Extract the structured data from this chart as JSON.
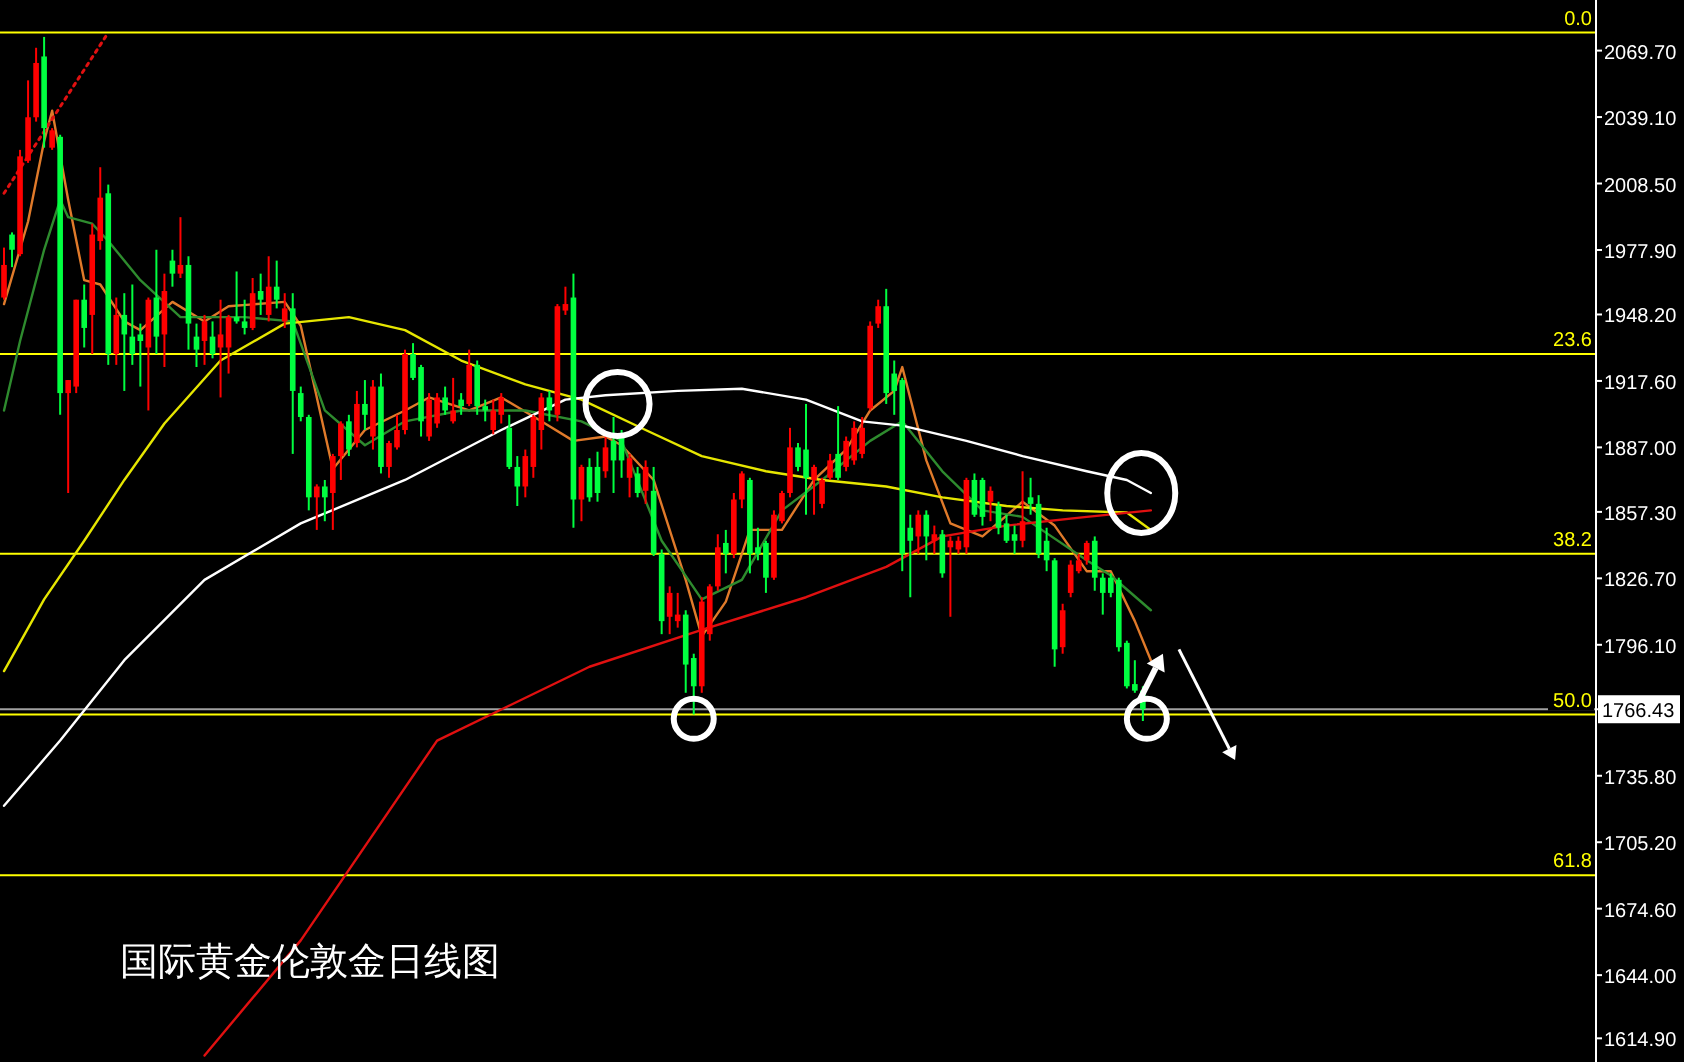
{
  "chart_data": {
    "type": "candlestick",
    "title": "国际黄金伦敦金日线图",
    "categories": [
      null,
      null,
      null,
      null,
      null,
      null,
      null,
      null,
      null,
      null,
      null,
      null,
      null,
      null,
      null,
      null,
      null,
      null,
      null,
      null,
      null,
      null,
      null,
      null,
      null,
      null,
      null,
      null,
      null,
      null,
      null,
      null,
      null,
      null,
      null,
      null,
      null,
      null,
      null,
      null,
      null,
      null,
      null,
      null,
      null,
      null,
      null,
      null,
      null,
      null,
      null,
      null,
      null,
      null,
      null,
      null,
      null,
      null,
      null,
      null,
      null,
      null,
      null,
      null,
      null,
      null,
      null,
      null,
      null,
      null,
      null,
      null,
      null,
      null,
      null,
      null,
      null,
      null,
      null,
      null,
      null,
      null,
      null,
      null,
      null,
      null,
      null,
      null,
      null,
      null,
      null,
      null,
      null,
      null,
      null,
      null,
      null,
      null,
      null,
      null,
      null,
      null,
      null,
      null,
      null,
      null,
      null,
      null,
      null,
      null,
      null,
      null,
      null,
      null,
      null,
      null,
      null,
      null,
      null,
      null,
      null,
      null,
      null,
      null,
      null,
      null,
      null,
      null,
      null,
      null,
      null,
      null,
      null,
      null,
      null,
      null,
      null,
      null,
      null,
      null,
      null,
      null,
      null,
      null,
      null,
      null,
      null,
      null,
      null,
      null,
      null,
      null,
      null,
      null,
      null,
      null,
      null,
      null,
      null,
      null,
      null,
      null,
      null,
      null,
      null,
      null,
      null,
      null,
      null,
      null,
      null,
      null,
      null,
      null,
      null,
      null,
      null,
      null,
      null,
      null,
      null,
      null,
      null,
      null,
      null,
      null,
      null,
      null,
      null,
      null,
      null,
      null,
      null,
      null,
      null,
      null,
      null,
      null,
      null
    ],
    "ohlc": [
      [
        1956,
        1979,
        1955,
        1971
      ],
      [
        1985,
        1986,
        1970,
        1978
      ],
      [
        1976,
        2024,
        1975,
        2021
      ],
      [
        2019,
        2056,
        2018,
        2039
      ],
      [
        2039,
        2071,
        2037,
        2064
      ],
      [
        2067,
        2076,
        2025,
        2034
      ],
      [
        2025,
        2034,
        2024,
        2033
      ],
      [
        2030,
        2031,
        1902,
        1912
      ],
      [
        1912,
        1918,
        1866,
        1918
      ],
      [
        1915,
        1955,
        1912,
        1955
      ],
      [
        1955,
        1962,
        1933,
        1942
      ],
      [
        1948,
        1990,
        1930,
        1985
      ],
      [
        1982,
        2016,
        1978,
        2002
      ],
      [
        2004,
        2008,
        1925,
        1930
      ],
      [
        1930,
        1956,
        1925,
        1948
      ],
      [
        1948,
        1958,
        1913,
        1939
      ],
      [
        1938,
        1962,
        1925,
        1930
      ],
      [
        1939,
        1944,
        1915,
        1936
      ],
      [
        1933,
        1956,
        1904,
        1955
      ],
      [
        1956,
        1978,
        1930,
        1938
      ],
      [
        1939,
        1967,
        1924,
        1959
      ],
      [
        1973,
        1978,
        1961,
        1967
      ],
      [
        1967,
        1993,
        1965,
        1971
      ],
      [
        1971,
        1975,
        1932,
        1944
      ],
      [
        1938,
        1944,
        1924,
        1932
      ],
      [
        1936,
        1948,
        1925,
        1945
      ],
      [
        1938,
        1945,
        1928,
        1930
      ],
      [
        1933,
        1955,
        1910,
        1939
      ],
      [
        1933,
        1948,
        1921,
        1947
      ],
      [
        1947,
        1968,
        1944,
        1945
      ],
      [
        1945,
        1955,
        1939,
        1942
      ],
      [
        1942,
        1965,
        1941,
        1958
      ],
      [
        1959,
        1967,
        1948,
        1955
      ],
      [
        1948,
        1975,
        1945,
        1961
      ],
      [
        1961,
        1973,
        1951,
        1955
      ],
      [
        1945,
        1958,
        1942,
        1951
      ],
      [
        1951,
        1958,
        1884,
        1913
      ],
      [
        1912,
        1915,
        1899,
        1901
      ],
      [
        1901,
        1902,
        1858,
        1864
      ],
      [
        1864,
        1870,
        1849,
        1869
      ],
      [
        1869,
        1872,
        1853,
        1864
      ],
      [
        1866,
        1884,
        1849,
        1883
      ],
      [
        1883,
        1899,
        1872,
        1898
      ],
      [
        1899,
        1902,
        1883,
        1886
      ],
      [
        1889,
        1913,
        1887,
        1907
      ],
      [
        1907,
        1918,
        1895,
        1902
      ],
      [
        1892,
        1918,
        1886,
        1915
      ],
      [
        1915,
        1921,
        1875,
        1878
      ],
      [
        1878,
        1890,
        1873,
        1889
      ],
      [
        1887,
        1902,
        1886,
        1895
      ],
      [
        1895,
        1932,
        1893,
        1930
      ],
      [
        1930,
        1935,
        1918,
        1919
      ],
      [
        1924,
        1925,
        1892,
        1899
      ],
      [
        1892,
        1912,
        1890,
        1909
      ],
      [
        1898,
        1912,
        1896,
        1910
      ],
      [
        1910,
        1915,
        1902,
        1904
      ],
      [
        1899,
        1919,
        1898,
        1904
      ],
      [
        1909,
        1912,
        1902,
        1906
      ],
      [
        1907,
        1932,
        1906,
        1925
      ],
      [
        1925,
        1927,
        1902,
        1906
      ],
      [
        1906,
        1909,
        1899,
        1904
      ],
      [
        1895,
        1909,
        1893,
        1904
      ],
      [
        1902,
        1912,
        1898,
        1910
      ],
      [
        1896,
        1902,
        1877,
        1878
      ],
      [
        1878,
        1883,
        1860,
        1869
      ],
      [
        1869,
        1886,
        1864,
        1883
      ],
      [
        1878,
        1902,
        1873,
        1901
      ],
      [
        1895,
        1912,
        1886,
        1910
      ],
      [
        1910,
        1913,
        1899,
        1904
      ],
      [
        1902,
        1953,
        1899,
        1952
      ],
      [
        1950,
        1961,
        1948,
        1953
      ],
      [
        1956,
        1967,
        1850,
        1863
      ],
      [
        1863,
        1879,
        1853,
        1878
      ],
      [
        1878,
        1882,
        1862,
        1864
      ],
      [
        1878,
        1885,
        1862,
        1866
      ],
      [
        1876,
        1892,
        1873,
        1887
      ],
      [
        1890,
        1901,
        1866,
        1881
      ],
      [
        1893,
        1895,
        1873,
        1881
      ],
      [
        1873,
        1884,
        1864,
        1882
      ],
      [
        1875,
        1878,
        1864,
        1866
      ],
      [
        1867,
        1881,
        1861,
        1878
      ],
      [
        1867,
        1878,
        1837,
        1838
      ],
      [
        1838,
        1840,
        1801,
        1807
      ],
      [
        1809,
        1823,
        1801,
        1820
      ],
      [
        1807,
        1820,
        1804,
        1810
      ],
      [
        1810,
        1812,
        1774,
        1787
      ],
      [
        1790,
        1792,
        1764,
        1777
      ],
      [
        1777,
        1818,
        1774,
        1816
      ],
      [
        1801,
        1824,
        1798,
        1823
      ],
      [
        1823,
        1847,
        1821,
        1841
      ],
      [
        1843,
        1849,
        1829,
        1838
      ],
      [
        1838,
        1866,
        1836,
        1863
      ],
      [
        1863,
        1876,
        1859,
        1875
      ],
      [
        1872,
        1873,
        1829,
        1838
      ],
      [
        1841,
        1850,
        1835,
        1838
      ],
      [
        1843,
        1844,
        1820,
        1827
      ],
      [
        1827,
        1858,
        1826,
        1856
      ],
      [
        1853,
        1867,
        1852,
        1866
      ],
      [
        1866,
        1896,
        1864,
        1887
      ],
      [
        1887,
        1889,
        1876,
        1878
      ],
      [
        1886,
        1907,
        1856,
        1873
      ],
      [
        1872,
        1879,
        1856,
        1878
      ],
      [
        1861,
        1873,
        1859,
        1872
      ],
      [
        1873,
        1884,
        1872,
        1881
      ],
      [
        1884,
        1906,
        1872,
        1873
      ],
      [
        1878,
        1892,
        1876,
        1890
      ],
      [
        1881,
        1899,
        1879,
        1896
      ],
      [
        1884,
        1901,
        1882,
        1896
      ],
      [
        1905,
        1945,
        1904,
        1943
      ],
      [
        1944,
        1955,
        1942,
        1952
      ],
      [
        1952,
        1960,
        1907,
        1912
      ],
      [
        1921,
        1927,
        1902,
        1913
      ],
      [
        1918,
        1919,
        1830,
        1838
      ],
      [
        1850,
        1856,
        1818,
        1844
      ],
      [
        1846,
        1858,
        1838,
        1856
      ],
      [
        1856,
        1858,
        1835,
        1846
      ],
      [
        1844,
        1851,
        1838,
        1847
      ],
      [
        1847,
        1849,
        1827,
        1829
      ],
      [
        1841,
        1846,
        1809,
        1844
      ],
      [
        1840,
        1846,
        1838,
        1844
      ],
      [
        1841,
        1873,
        1838,
        1872
      ],
      [
        1872,
        1875,
        1855,
        1856
      ],
      [
        1872,
        1873,
        1851,
        1855
      ],
      [
        1862,
        1869,
        1853,
        1867
      ],
      [
        1860,
        1862,
        1847,
        1850
      ],
      [
        1852,
        1856,
        1843,
        1844
      ],
      [
        1847,
        1851,
        1838,
        1844
      ],
      [
        1844,
        1876,
        1841,
        1853
      ],
      [
        1864,
        1873,
        1856,
        1861
      ],
      [
        1861,
        1865,
        1836,
        1838
      ],
      [
        1844,
        1850,
        1830,
        1835
      ],
      [
        1835,
        1836,
        1786,
        1794
      ],
      [
        1795,
        1815,
        1792,
        1812
      ],
      [
        1820,
        1835,
        1818,
        1833
      ],
      [
        1830,
        1838,
        1829,
        1835
      ],
      [
        1835,
        1844,
        1833,
        1843
      ],
      [
        1844,
        1846,
        1821,
        1827
      ],
      [
        1827,
        1829,
        1810,
        1820
      ],
      [
        1827,
        1829,
        1818,
        1820
      ],
      [
        1826,
        1827,
        1793,
        1795
      ],
      [
        1797,
        1798,
        1776,
        1777
      ],
      [
        1778,
        1789,
        1774,
        1775
      ],
      [
        1775,
        1777,
        1761,
        1766.43
      ],
      null,
      null,
      null,
      null,
      null,
      null,
      null,
      null,
      null,
      null,
      null,
      null,
      null,
      null,
      null,
      null,
      null,
      null,
      null,
      null,
      null,
      null,
      null,
      null,
      null,
      null,
      null,
      null,
      null,
      null,
      null,
      null,
      null,
      null,
      null,
      null,
      null,
      null,
      null,
      null,
      null,
      null,
      null,
      null,
      null,
      null,
      null,
      null,
      null,
      null,
      null,
      null,
      null,
      null,
      null,
      null
    ],
    "colors": [
      "#ff0000",
      "#00ff40",
      "#ff0000",
      "#ff0000",
      "#ff0000",
      "#00ff40",
      "#ff0000",
      "#00ff40",
      "#ff0000",
      "#ff0000",
      "#00ff40",
      "#ff0000",
      "#ff0000",
      "#00ff40",
      "#ff0000",
      "#00ff40",
      "#00ff40",
      "#00ff40",
      "#ff0000",
      "#00ff40",
      "#ff0000",
      "#00ff40",
      "#ff0000",
      "#00ff40",
      "#00ff40",
      "#ff0000",
      "#00ff40",
      "#ff0000",
      "#ff0000",
      "#00ff40",
      "#00ff40",
      "#ff0000",
      "#00ff40",
      "#ff0000",
      "#00ff40",
      "#ff0000",
      "#00ff40",
      "#00ff40",
      "#00ff40",
      "#ff0000",
      "#00ff40",
      "#ff0000",
      "#ff0000",
      "#00ff40",
      "#ff0000",
      "#00ff40",
      "#ff0000",
      "#00ff40",
      "#ff0000",
      "#ff0000",
      "#ff0000",
      "#00ff40",
      "#00ff40",
      "#ff0000",
      "#ff0000",
      "#00ff40",
      "#ff0000",
      "#00ff40",
      "#ff0000",
      "#00ff40",
      "#00ff40",
      "#ff0000",
      "#ff0000",
      "#00ff40",
      "#00ff40",
      "#ff0000",
      "#ff0000",
      "#ff0000",
      "#00ff40",
      "#ff0000",
      "#ff0000",
      "#00ff40",
      "#ff0000",
      "#00ff40",
      "#00ff40",
      "#ff0000",
      "#00ff40",
      "#00ff40",
      "#ff0000",
      "#00ff40",
      "#ff0000",
      "#00ff40",
      "#00ff40",
      "#ff0000",
      "#ff0000",
      "#00ff40",
      "#00ff40",
      "#ff0000",
      "#ff0000",
      "#ff0000",
      "#00ff40",
      "#ff0000",
      "#ff0000",
      "#00ff40",
      "#00ff40",
      "#00ff40",
      "#ff0000",
      "#ff0000",
      "#ff0000",
      "#00ff40",
      "#00ff40",
      "#ff0000",
      "#ff0000",
      "#ff0000",
      "#00ff40",
      "#ff0000",
      "#ff0000",
      "#ff0000",
      "#ff0000",
      "#ff0000",
      "#00ff40",
      "#00ff40",
      "#00ff40",
      "#00ff40",
      "#ff0000",
      "#00ff40",
      "#ff0000",
      "#00ff40",
      "#ff0000",
      "#ff0000",
      "#ff0000",
      "#00ff40",
      "#00ff40",
      "#ff0000",
      "#00ff40",
      "#00ff40",
      "#00ff40",
      "#ff0000",
      "#00ff40",
      "#00ff40",
      "#00ff40",
      "#00ff40",
      "#ff0000",
      "#ff0000",
      "#ff0000",
      "#ff0000",
      "#00ff40",
      "#00ff40",
      "#00ff40",
      "#00ff40",
      "#00ff40",
      "#00ff40",
      "#00ff40",
      null,
      null,
      null,
      null,
      null,
      null,
      null,
      null,
      null,
      null,
      null,
      null,
      null,
      null,
      null,
      null,
      null,
      null,
      null,
      null,
      null,
      null,
      null,
      null,
      null,
      null,
      null,
      null,
      null,
      null,
      null,
      null,
      null,
      null,
      null,
      null,
      null,
      null,
      null,
      null,
      null,
      null,
      null,
      null,
      null,
      null,
      null,
      null,
      null,
      null,
      null,
      null,
      null,
      null,
      null,
      null
    ],
    "series": [
      {
        "type": "line",
        "color": "#e07a2a",
        "values": [
          1953,
          null,
          null,
          1991,
          null,
          2028,
          2042,
          null,
          2001,
          null,
          1964,
          null,
          1962,
          null,
          null,
          1945,
          null,
          1941,
          null,
          null,
          null,
          1954,
          null,
          null,
          null,
          1945,
          null,
          null,
          1952,
          null,
          null,
          null,
          null,
          null,
          null,
          1954,
          null,
          1943,
          null,
          null,
          null,
          1877,
          null,
          null,
          null,
          1895,
          null,
          null,
          null,
          null,
          1904,
          null,
          null,
          1910,
          null,
          null,
          null,
          null,
          1904,
          null,
          null,
          null,
          1910,
          null,
          null,
          null,
          null,
          1899,
          null,
          null,
          null,
          1890,
          null,
          null,
          null,
          1892,
          null,
          1888,
          null,
          null,
          null,
          1872,
          null,
          null,
          null,
          1826,
          null,
          1800,
          null,
          null,
          1816,
          null,
          null,
          1849,
          null,
          null,
          null,
          1849,
          null,
          null,
          null,
          1872,
          null,
          null,
          null,
          1886,
          null,
          null,
          1904,
          null,
          null,
          1913,
          1924,
          null,
          null,
          1881,
          null,
          null,
          1852,
          null,
          null,
          null,
          1846,
          null,
          null,
          null,
          null,
          1862,
          null,
          null,
          null,
          1851,
          null,
          null,
          null,
          1830,
          null,
          null,
          1830,
          null,
          null,
          1807,
          null,
          1789,
          null,
          null,
          null,
          null,
          null,
          null,
          null,
          null,
          null,
          null,
          null,
          null,
          null,
          null,
          null,
          null,
          null,
          null,
          null,
          null,
          null,
          null,
          null,
          null,
          null,
          null,
          null,
          null,
          null,
          null,
          null,
          null,
          null,
          null,
          null,
          null,
          null,
          null,
          null,
          null,
          null,
          null,
          null,
          null,
          null,
          null,
          null,
          null,
          null,
          null,
          null,
          null,
          null,
          null,
          null
        ]
      },
      {
        "type": "line",
        "color": "#2e8b2e",
        "values": [
          1904,
          null,
          1936,
          null,
          null,
          1978,
          null,
          2001,
          1993,
          null,
          null,
          1990,
          null,
          1982,
          null,
          null,
          null,
          1964,
          null,
          null,
          null,
          null,
          1947,
          null,
          null,
          null,
          null,
          null,
          null,
          null,
          1947,
          null,
          null,
          null,
          null,
          null,
          1945,
          null,
          null,
          null,
          1904,
          null,
          null,
          null,
          null,
          1888,
          null,
          null,
          null,
          null,
          1899,
          null,
          null,
          null,
          null,
          null,
          null,
          1904,
          null,
          null,
          null,
          null,
          null,
          null,
          null,
          1904,
          null,
          null,
          null,
          null,
          null,
          null,
          1899,
          null,
          null,
          null,
          null,
          1890,
          null,
          null,
          null,
          null,
          1844,
          null,
          null,
          null,
          null,
          1817,
          null,
          null,
          null,
          null,
          1826,
          null,
          null,
          null,
          null,
          1858,
          null,
          null,
          null,
          null,
          1872,
          null,
          null,
          null,
          null,
          null,
          1890,
          null,
          null,
          null,
          1899,
          null,
          null,
          null,
          null,
          1876,
          null,
          null,
          null,
          null,
          1858,
          null,
          null,
          null,
          null,
          1855,
          null,
          null,
          null,
          null,
          null,
          null,
          null,
          1835,
          null,
          null,
          1828,
          null,
          null,
          null,
          null,
          1812,
          null,
          null,
          null,
          null,
          null,
          null,
          null,
          null,
          null,
          null,
          null,
          null,
          null,
          null,
          null,
          null,
          null,
          null,
          null,
          null,
          null,
          null,
          null,
          null,
          null,
          null,
          null,
          null,
          null,
          null,
          null,
          null,
          null,
          null,
          null,
          null,
          null,
          null,
          null,
          null,
          null,
          null,
          null,
          null,
          null,
          null,
          null,
          null,
          null,
          null,
          null,
          null,
          null,
          null,
          null
        ]
      },
      {
        "type": "line",
        "color": "#e6e600",
        "values": [
          1784,
          null,
          null,
          null,
          null,
          1817,
          null,
          null,
          null,
          null,
          1844,
          null,
          null,
          null,
          null,
          1872,
          null,
          null,
          null,
          null,
          1898,
          null,
          null,
          null,
          null,
          null,
          null,
          1927,
          null,
          null,
          null,
          null,
          null,
          null,
          null,
          1944,
          null,
          null,
          null,
          null,
          null,
          null,
          null,
          1947,
          null,
          null,
          null,
          null,
          null,
          null,
          1941,
          null,
          null,
          null,
          null,
          null,
          null,
          1927,
          null,
          null,
          null,
          null,
          null,
          null,
          null,
          1916,
          null,
          null,
          null,
          null,
          null,
          null,
          1909,
          null,
          null,
          null,
          null,
          null,
          null,
          null,
          1895,
          null,
          null,
          null,
          null,
          null,
          null,
          1883,
          null,
          null,
          null,
          null,
          null,
          null,
          null,
          1876,
          null,
          null,
          null,
          null,
          null,
          null,
          1872,
          null,
          null,
          null,
          null,
          null,
          null,
          null,
          1869,
          null,
          null,
          null,
          null,
          null,
          null,
          1864,
          null,
          null,
          null,
          null,
          null,
          null,
          null,
          1860,
          null,
          null,
          null,
          null,
          null,
          null,
          1858,
          null,
          null,
          null,
          null,
          null,
          null,
          null,
          1857,
          null,
          null,
          1849,
          null,
          null,
          null,
          null,
          null,
          null,
          null,
          null,
          null,
          null,
          null,
          null,
          null,
          null,
          null,
          null,
          null,
          null,
          null,
          null,
          null,
          null,
          null,
          null,
          null,
          null,
          null,
          null,
          null,
          null,
          null,
          null,
          null,
          null,
          null,
          null,
          null,
          null,
          null,
          null,
          null,
          null,
          null,
          null,
          null,
          null,
          null,
          null,
          null,
          null,
          null,
          null,
          null,
          null,
          null
        ]
      },
      {
        "type": "line",
        "color": "#ffffff",
        "values": [
          1722,
          null,
          null,
          null,
          null,
          null,
          null,
          1752,
          null,
          null,
          null,
          null,
          null,
          null,
          null,
          1789,
          null,
          null,
          null,
          null,
          null,
          null,
          null,
          null,
          null,
          1826,
          null,
          null,
          null,
          null,
          null,
          null,
          null,
          null,
          null,
          null,
          null,
          1852,
          null,
          null,
          null,
          null,
          null,
          null,
          null,
          null,
          null,
          null,
          null,
          null,
          1872,
          null,
          null,
          null,
          null,
          null,
          null,
          null,
          null,
          null,
          null,
          null,
          1895,
          null,
          null,
          null,
          null,
          null,
          null,
          null,
          1909,
          null,
          null,
          null,
          null,
          1911,
          null,
          null,
          null,
          null,
          null,
          null,
          null,
          null,
          1913,
          null,
          null,
          null,
          null,
          null,
          null,
          null,
          1914,
          null,
          null,
          null,
          null,
          null,
          null,
          null,
          1909,
          null,
          null,
          null,
          null,
          null,
          null,
          1899,
          null,
          null,
          null,
          null,
          1897,
          null,
          null,
          null,
          null,
          null,
          null,
          null,
          1890,
          null,
          null,
          null,
          null,
          null,
          null,
          1883,
          null,
          null,
          null,
          null,
          null,
          null,
          null,
          1876,
          null,
          null,
          null,
          null,
          1872,
          null,
          null,
          1866,
          null,
          null,
          null,
          null,
          null,
          null,
          null,
          null,
          null,
          null,
          null,
          null,
          null,
          null,
          null,
          null,
          null,
          null,
          null,
          null,
          null,
          null,
          null,
          null,
          null,
          null,
          null,
          null,
          null,
          null,
          null,
          null,
          null,
          null,
          null,
          null,
          null,
          null,
          null,
          null,
          null,
          null,
          null,
          null,
          null,
          null,
          null,
          null,
          null,
          null,
          null,
          null,
          null,
          null,
          null
        ]
      },
      {
        "type": "line",
        "color": "#e01010",
        "values": [
          null,
          null,
          null,
          null,
          null,
          null,
          null,
          null,
          null,
          null,
          null,
          null,
          null,
          null,
          null,
          null,
          null,
          null,
          null,
          null,
          null,
          null,
          null,
          null,
          null,
          1607,
          null,
          null,
          null,
          null,
          null,
          null,
          null,
          null,
          null,
          null,
          null,
          1660,
          null,
          null,
          null,
          null,
          null,
          null,
          null,
          null,
          null,
          null,
          null,
          null,
          null,
          null,
          null,
          null,
          1752,
          null,
          null,
          null,
          null,
          null,
          null,
          null,
          null,
          null,
          null,
          null,
          null,
          null,
          null,
          null,
          null,
          null,
          null,
          1786,
          null,
          null,
          null,
          null,
          null,
          null,
          null,
          null,
          null,
          null,
          null,
          null,
          null,
          1803,
          null,
          null,
          null,
          null,
          null,
          null,
          null,
          null,
          null,
          null,
          null,
          null,
          1818,
          null,
          null,
          null,
          null,
          null,
          null,
          null,
          null,
          null,
          1832,
          null,
          null,
          null,
          null,
          null,
          null,
          1846,
          null,
          null,
          null,
          null,
          null,
          null,
          null,
          1851,
          null,
          null,
          null,
          null,
          null,
          null,
          null,
          null,
          null,
          1855,
          null,
          null,
          null,
          null,
          null,
          null,
          null,
          1858,
          null,
          null,
          null,
          null,
          null,
          null,
          null,
          null,
          null,
          null,
          null,
          null,
          null,
          null,
          null,
          null,
          null,
          null,
          null,
          null,
          null,
          null,
          null,
          null,
          null,
          null,
          null,
          null,
          null,
          null,
          null,
          null,
          null,
          null,
          null,
          null,
          null,
          null,
          null,
          null,
          null,
          null,
          null,
          null,
          null,
          null,
          null,
          null,
          null,
          null,
          null,
          null,
          null,
          null,
          null
        ]
      },
      {
        "type": "line",
        "color": "#e01010",
        "line_style": "dotted",
        "values": [
          2004,
          null,
          null,
          null,
          null,
          null,
          null,
          null,
          null,
          null,
          null,
          null,
          null,
          2078,
          null,
          null,
          null,
          null,
          null,
          null,
          null,
          null,
          null,
          null,
          null,
          null,
          null,
          null,
          null,
          null,
          null,
          null,
          null,
          null,
          null,
          null,
          null,
          null,
          null,
          null,
          null,
          null,
          null,
          null,
          null,
          null,
          null,
          null,
          null,
          null,
          null,
          null,
          null,
          null,
          null,
          null,
          null,
          null,
          null,
          null,
          null,
          null,
          null,
          null,
          null,
          null,
          null,
          null,
          null,
          null,
          null,
          null,
          null,
          null,
          null,
          null,
          null,
          null,
          null,
          null,
          null,
          null,
          null,
          null,
          null,
          null,
          null,
          null,
          null,
          null,
          null,
          null,
          null,
          null,
          null,
          null,
          null,
          null,
          null,
          null,
          null,
          null,
          null,
          null,
          null,
          null,
          null,
          null,
          null,
          null,
          null,
          null,
          null,
          null,
          null,
          null,
          null,
          null,
          null,
          null,
          null,
          null,
          null,
          null,
          null,
          null,
          null,
          null,
          null,
          null,
          null,
          null,
          null,
          null,
          null,
          null,
          null,
          null,
          null,
          null,
          null,
          null,
          null,
          null,
          null,
          null,
          null,
          null,
          null,
          null,
          null,
          null,
          null,
          null,
          null,
          null,
          null,
          null,
          null,
          null,
          null,
          null,
          null,
          null,
          null,
          null,
          null,
          null,
          null,
          null,
          null,
          null,
          null,
          null,
          null,
          null,
          null,
          null,
          null,
          null,
          null,
          null,
          null,
          null,
          null,
          null,
          null,
          null,
          null,
          null,
          null,
          null,
          null,
          null,
          null,
          null,
          null,
          null,
          null
        ]
      }
    ],
    "ylim": [
      1604,
      2093
    ],
    "yticks": [
      {
        "value": 2069.7,
        "label": "2069.70"
      },
      {
        "value": 2039.1,
        "label": "2039.10"
      },
      {
        "value": 2008.5,
        "label": "2008.50"
      },
      {
        "value": 1977.9,
        "label": "1977.90"
      },
      {
        "value": 1948.2,
        "label": "1948.20"
      },
      {
        "value": 1917.6,
        "label": "1917.60"
      },
      {
        "value": 1887,
        "label": "1887.00"
      },
      {
        "value": 1857.3,
        "label": "1857.30"
      },
      {
        "value": 1826.7,
        "label": "1826.70"
      },
      {
        "value": 1796.1,
        "label": "1796.10"
      },
      {
        "value": 1766.43,
        "label": "1766.43"
      },
      {
        "value": 1735.8,
        "label": "1735.80"
      },
      {
        "value": 1705.2,
        "label": "1705.20"
      },
      {
        "value": 1674.6,
        "label": "1674.60"
      },
      {
        "value": 1644,
        "label": "1644.00"
      },
      {
        "value": 1614.9,
        "label": "1614.90"
      }
    ],
    "ref_lines": [
      {
        "axis": "y",
        "value": 2078,
        "color": "#ffff00"
      },
      {
        "axis": "y",
        "value": 1930,
        "color": "#ffff00"
      },
      {
        "axis": "y",
        "value": 1838,
        "color": "#ffff00"
      },
      {
        "axis": "y",
        "value": 1764,
        "color": "#ffff00"
      },
      {
        "axis": "y",
        "value": 1690,
        "color": "#ffff00"
      },
      {
        "axis": "y",
        "value": 1766.43,
        "color": "#a0a0a0"
      }
    ],
    "annotations": [
      {
        "text": "0.0",
        "y": 2078
      },
      {
        "text": "23.6",
        "y": 1930
      },
      {
        "text": "38.2",
        "y": 1838
      },
      {
        "text": "50.0",
        "y": 1764
      },
      {
        "text": "61.8",
        "y": 1690
      }
    ],
    "tick_labels": "y"
  }
}
